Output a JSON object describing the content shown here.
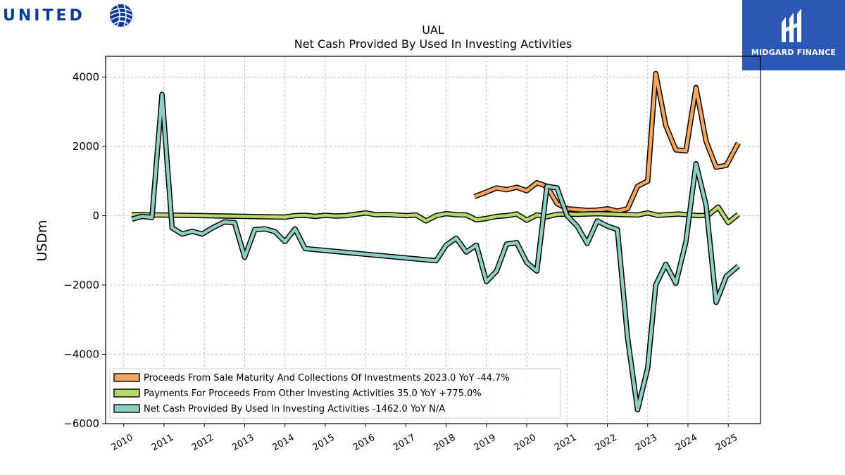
{
  "header": {
    "left_logo_text": "UNITED",
    "right_logo_text": "MIDGARD FINANCE"
  },
  "chart_data": {
    "type": "line",
    "title": "UAL",
    "subtitle": "Net Cash Provided By Used In Investing Activities",
    "xlabel": "",
    "ylabel": "USDm",
    "xlim": [
      2009.55,
      2025.8
    ],
    "ylim": [
      -6000,
      4600
    ],
    "yticks": [
      4000,
      2000,
      0,
      -2000,
      -4000,
      -6000
    ],
    "ytick_labels": [
      "4000",
      "2000",
      "0",
      "−2000",
      "−4000",
      "−6000"
    ],
    "xticks": [
      2010,
      2011,
      2012,
      2013,
      2014,
      2015,
      2016,
      2017,
      2018,
      2019,
      2020,
      2021,
      2022,
      2023,
      2024,
      2025
    ],
    "xtick_labels": [
      "2010",
      "2011",
      "2012",
      "2013",
      "2014",
      "2015",
      "2016",
      "2017",
      "2018",
      "2019",
      "2020",
      "2021",
      "2022",
      "2023",
      "2024",
      "2025"
    ],
    "grid": true,
    "legend_position": "lower-left",
    "series": [
      {
        "name": "Proceeds From Sale Maturity And Collections Of Investments",
        "legend_label": "Proceeds From Sale Maturity And Collections Of Investments  2023.0 YoY -44.7%",
        "color": "#f8a65e",
        "x": [
          2018.7,
          2019.0,
          2019.25,
          2019.5,
          2019.75,
          2020.0,
          2020.25,
          2020.5,
          2020.75,
          2021.0,
          2021.25,
          2021.5,
          2021.75,
          2022.0,
          2022.25,
          2022.5,
          2022.75,
          2023.0,
          2023.2,
          2023.45,
          2023.7,
          2023.95,
          2024.2,
          2024.45,
          2024.7,
          2024.95,
          2025.25
        ],
        "y": [
          550,
          680,
          800,
          750,
          820,
          720,
          950,
          850,
          350,
          200,
          180,
          150,
          160,
          200,
          130,
          200,
          850,
          1000,
          4100,
          2600,
          1900,
          1870,
          3700,
          2150,
          1400,
          1450,
          2100
        ]
      },
      {
        "name": "Payments For Proceeds From Other Investing Activities",
        "legend_label": "Payments For Proceeds From Other Investing Activities  35.0 YoY +775.0%",
        "color": "#b4d96a",
        "x": [
          2010.2,
          2010.45,
          2010.7,
          2010.95,
          2011.5,
          2012.0,
          2012.5,
          2013.0,
          2013.5,
          2014.0,
          2014.25,
          2014.5,
          2014.75,
          2015.0,
          2015.25,
          2015.5,
          2015.75,
          2016.0,
          2016.25,
          2016.5,
          2016.75,
          2017.0,
          2017.25,
          2017.5,
          2017.75,
          2018.0,
          2018.25,
          2018.5,
          2018.75,
          2019.0,
          2019.25,
          2019.5,
          2019.75,
          2020.0,
          2020.25,
          2020.5,
          2020.75,
          2021.0,
          2021.25,
          2021.5,
          2021.75,
          2022.0,
          2022.25,
          2022.5,
          2022.75,
          2023.0,
          2023.25,
          2023.5,
          2023.75,
          2024.0,
          2024.25,
          2024.5,
          2024.75,
          2025.0,
          2025.25
        ],
        "y": [
          30,
          30,
          20,
          20,
          10,
          0,
          -10,
          -20,
          -30,
          -40,
          0,
          10,
          -20,
          10,
          -10,
          0,
          40,
          80,
          30,
          40,
          20,
          0,
          20,
          -150,
          0,
          60,
          30,
          20,
          -120,
          -80,
          -20,
          0,
          50,
          -130,
          20,
          -30,
          40,
          50,
          40,
          50,
          60,
          50,
          40,
          30,
          20,
          80,
          10,
          30,
          50,
          30,
          0,
          10,
          250,
          -200,
          40
        ]
      },
      {
        "name": "Net Cash Provided By Used In Investing Activities",
        "legend_label": "Net Cash Provided By Used In Investing Activities  -1462.0 YoY N/A",
        "color": "#8ecfc4",
        "x": [
          2010.2,
          2010.45,
          2010.7,
          2010.95,
          2011.2,
          2011.45,
          2011.7,
          2011.95,
          2012.2,
          2012.5,
          2012.75,
          2013.0,
          2013.25,
          2013.5,
          2013.75,
          2014.0,
          2014.25,
          2014.5,
          2017.75,
          2018.0,
          2018.25,
          2018.5,
          2018.75,
          2019.0,
          2019.25,
          2019.5,
          2019.75,
          2020.0,
          2020.25,
          2020.5,
          2020.75,
          2021.0,
          2021.25,
          2021.5,
          2021.75,
          2022.0,
          2022.25,
          2022.5,
          2022.75,
          2023.0,
          2023.2,
          2023.45,
          2023.7,
          2023.95,
          2024.2,
          2024.45,
          2024.7,
          2024.95,
          2025.25
        ],
        "y": [
          -100,
          -20,
          -50,
          3500,
          -350,
          -530,
          -450,
          -530,
          -350,
          -180,
          -200,
          -1200,
          -400,
          -380,
          -460,
          -750,
          -380,
          -950,
          -1300,
          -850,
          -650,
          -1050,
          -850,
          -1900,
          -1600,
          -820,
          -780,
          -1350,
          -1600,
          850,
          800,
          0,
          -300,
          -800,
          -150,
          -300,
          -400,
          -3500,
          -5600,
          -4400,
          -2000,
          -1400,
          -1950,
          -750,
          1500,
          300,
          -2500,
          -1750,
          -1450
        ]
      }
    ]
  }
}
